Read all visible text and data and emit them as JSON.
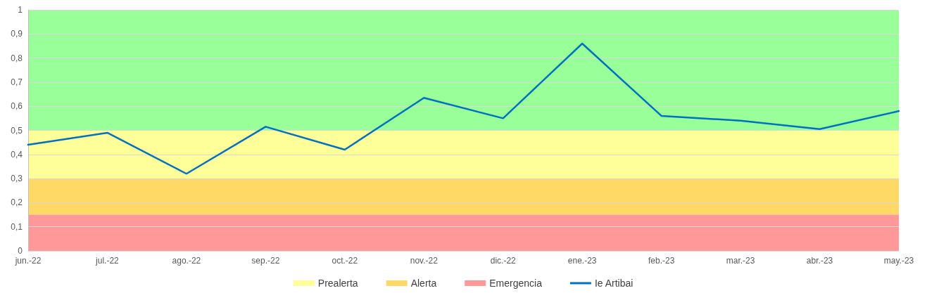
{
  "chart_data": {
    "type": "line",
    "categories": [
      "jun.-22",
      "jul.-22",
      "ago.-22",
      "sep.-22",
      "oct.-22",
      "nov.-22",
      "dic.-22",
      "ene.-23",
      "feb.-23",
      "mar.-23",
      "abr.-23",
      "may.-23"
    ],
    "series": [
      {
        "name": "Ie Artibai",
        "color": "#0070c0",
        "values": [
          0.44,
          0.49,
          0.32,
          0.515,
          0.42,
          0.635,
          0.55,
          0.86,
          0.56,
          0.54,
          0.505,
          0.58
        ]
      }
    ],
    "ylim": [
      0,
      1
    ],
    "yticks": [
      0,
      {
        "value": 0.1,
        "label": "0,1"
      },
      {
        "value": 0.2,
        "label": "0,2"
      },
      {
        "value": 0.3,
        "label": "0,3"
      },
      {
        "value": 0.4,
        "label": "0,4"
      },
      {
        "value": 0.5,
        "label": "0,5"
      },
      {
        "value": 0.6,
        "label": "0,6"
      },
      {
        "value": 0.7,
        "label": "0,7"
      },
      {
        "value": 0.8,
        "label": "0,8"
      },
      {
        "value": 0.9,
        "label": "0,9"
      },
      1
    ],
    "bands": [
      {
        "axis": "y",
        "from": 0.5,
        "to": 1,
        "color": "#99ff99"
      },
      {
        "axis": "y",
        "from": 0.3,
        "to": 0.5,
        "label": "Prealerta",
        "color": "#ffff99"
      },
      {
        "axis": "y",
        "from": 0.15,
        "to": 0.3,
        "label": "Alerta",
        "color": "#ffd966"
      },
      {
        "axis": "y",
        "from": 0,
        "to": 0.15,
        "label": "Emergencia",
        "color": "#ff9999"
      }
    ],
    "grid": "y",
    "legend": "bottom",
    "marker": "none",
    "line_style": "solid"
  }
}
